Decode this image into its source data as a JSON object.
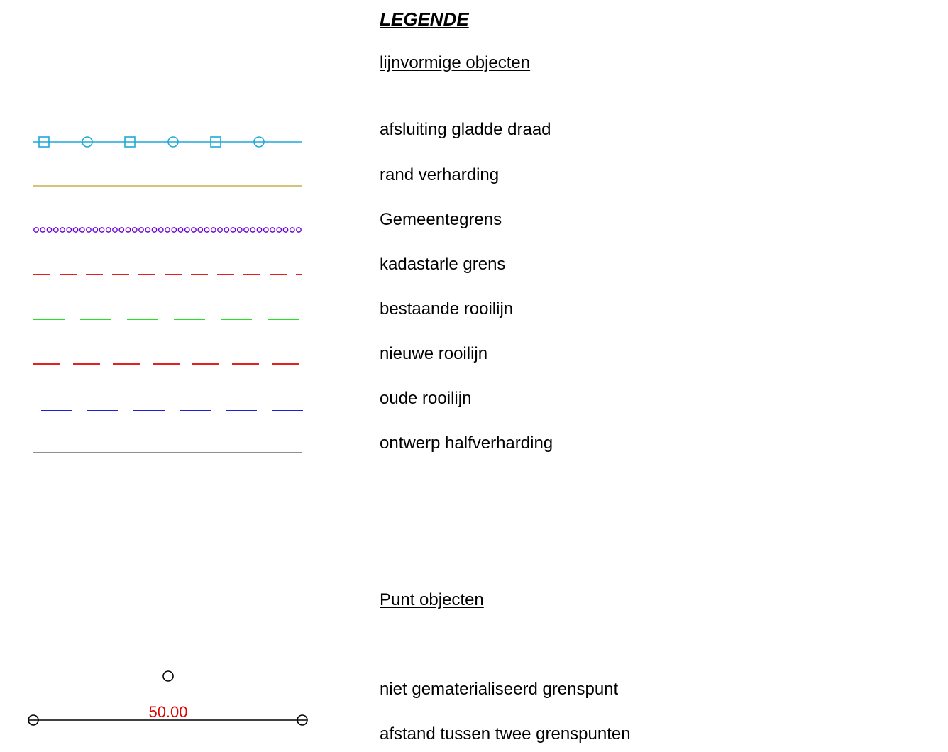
{
  "legend": {
    "title": "LEGENDE",
    "line_section_title": "lijnvormige objecten",
    "line_items": [
      {
        "label": "afsluiting gladde draad",
        "symbol": "fence-line",
        "color": "#1fa8d8"
      },
      {
        "label": "rand verharding",
        "symbol": "solid-line",
        "color": "#d8c27a"
      },
      {
        "label": "Gemeentegrens",
        "symbol": "dotted-circle-line",
        "color": "#6a00d8"
      },
      {
        "label": "kadastarle grens",
        "symbol": "dashed-line",
        "color": "#e00000"
      },
      {
        "label": "bestaande rooilijn",
        "symbol": "dashed-line",
        "color": "#00e000"
      },
      {
        "label": "nieuwe rooilijn",
        "symbol": "dashed-line",
        "color": "#e00000"
      },
      {
        "label": "oude rooilijn",
        "symbol": "dashed-line",
        "color": "#0000d8"
      },
      {
        "label": "ontwerp halfverharding",
        "symbol": "solid-line",
        "color": "#909090"
      }
    ],
    "point_section_title": "Punt objecten",
    "point_items": [
      {
        "label": "niet gematerialiseerd grenspunt",
        "symbol": "circle-point"
      },
      {
        "label": "afstand tussen twee grenspunten",
        "symbol": "distance-line",
        "value_label": "50.00",
        "value_color": "#e00000"
      }
    ]
  }
}
